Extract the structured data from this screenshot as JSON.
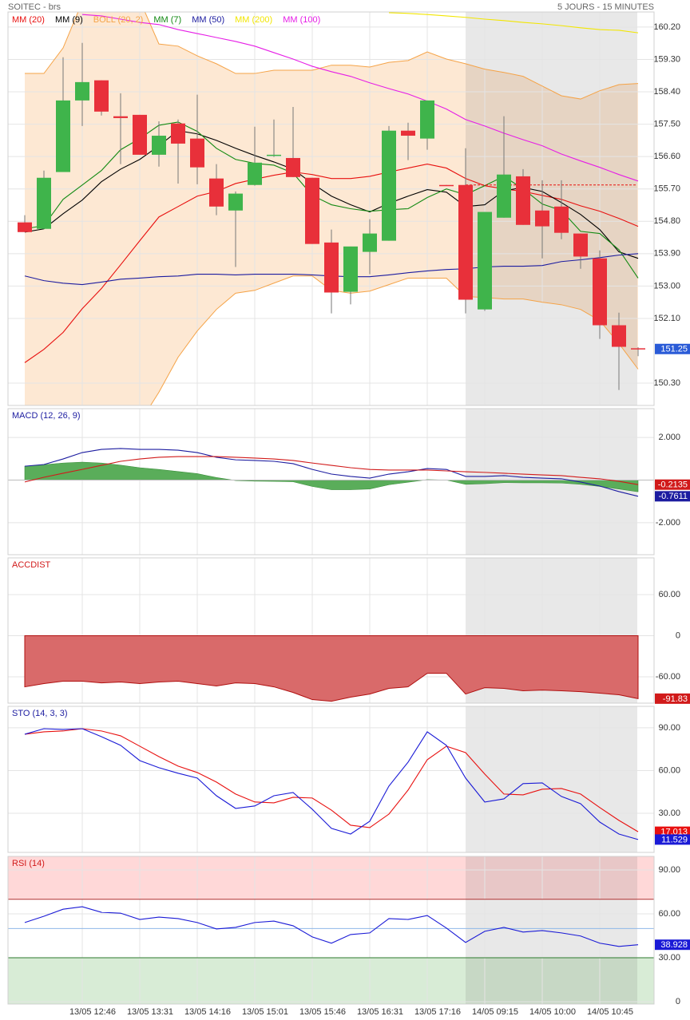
{
  "header": {
    "symbol": "SOITEC - brs",
    "period": "5 JOURS - 15 MINUTES"
  },
  "chart_data": [
    {
      "type": "candlestick",
      "categories": [
        null,
        null,
        null,
        "13/05 12:46",
        null,
        null,
        "13/05 13:31",
        null,
        null,
        "13/05 14:16",
        null,
        null,
        "13/05 15:01",
        null,
        null,
        "13/05 15:46",
        null,
        null,
        "13/05 16:31",
        null,
        null,
        "13/05 17:16",
        null,
        null,
        "14/05 09:15",
        null,
        null,
        "14/05 10:00",
        null,
        null,
        "14/05 10:45",
        null,
        null
      ],
      "open": [
        154.77,
        154.59,
        156.17,
        158.16,
        158.72,
        157.72,
        157.76,
        156.65,
        157.52,
        157.1,
        155.99,
        155.1,
        155.81,
        156.63,
        156.56,
        156.01,
        154.21,
        152.84,
        153.95,
        154.26,
        157.32,
        157.1,
        155.81,
        155.81,
        152.35,
        154.9,
        156.05,
        155.1,
        155.21,
        154.46,
        153.77,
        151.91,
        151.27
      ],
      "high": [
        154.97,
        156.21,
        159.36,
        159.76,
        158.72,
        158.36,
        157.76,
        157.58,
        157.63,
        158.32,
        156.39,
        155.63,
        157.43,
        157.63,
        157.98,
        156.01,
        154.57,
        154.1,
        154.86,
        157.45,
        157.54,
        158.16,
        155.81,
        156.83,
        155.06,
        157.72,
        156.25,
        155.94,
        155.94,
        154.46,
        153.99,
        152.26,
        151.3
      ],
      "low": [
        154.5,
        154.59,
        156.17,
        157.45,
        157.74,
        156.39,
        156.65,
        156.32,
        155.85,
        155.83,
        154.97,
        153.53,
        155.79,
        156.59,
        156.03,
        154.17,
        152.24,
        152.49,
        153.33,
        154.26,
        156.5,
        156.79,
        155.79,
        152.24,
        152.31,
        154.9,
        154.7,
        153.77,
        154.3,
        153.48,
        151.53,
        150.11,
        151.05
      ],
      "close": [
        154.5,
        156.01,
        158.16,
        158.67,
        157.85,
        157.67,
        156.65,
        157.18,
        156.96,
        156.3,
        155.21,
        155.57,
        156.43,
        156.65,
        156.03,
        154.17,
        152.82,
        154.1,
        154.46,
        157.32,
        157.18,
        158.16,
        155.79,
        152.62,
        155.06,
        156.1,
        154.7,
        154.66,
        154.48,
        153.82,
        151.91,
        151.31,
        151.25
      ],
      "up_color": "#3fb44b",
      "down_color": "#e8303a",
      "last_price_color": "#2a5bd7",
      "ref_line": 155.81,
      "ref_line_color": "#e8100f",
      "series": [
        {
          "name": "MM (20)",
          "color": "#e8100f",
          "values": [
            150.87,
            151.24,
            151.71,
            152.37,
            152.93,
            153.59,
            154.26,
            154.92,
            155.21,
            155.5,
            155.63,
            155.85,
            155.97,
            156.08,
            156.17,
            156.1,
            155.99,
            155.99,
            156.05,
            156.17,
            156.28,
            156.39,
            156.28,
            155.99,
            155.79,
            155.7,
            155.63,
            155.52,
            155.41,
            155.23,
            155.08,
            154.88,
            154.66
          ]
        },
        {
          "name": "MM (9)",
          "color": "#000000",
          "values": [
            154.5,
            154.59,
            155.01,
            155.39,
            155.9,
            156.25,
            156.52,
            156.9,
            157.32,
            157.23,
            157.05,
            156.83,
            156.63,
            156.45,
            156.25,
            155.85,
            155.5,
            155.26,
            155.06,
            155.3,
            155.5,
            155.68,
            155.61,
            155.21,
            155.26,
            155.65,
            155.74,
            155.63,
            155.32,
            154.99,
            154.57,
            153.95,
            153.77
          ]
        },
        {
          "name": "BOLL (20, 2)",
          "color": "#f5a347",
          "fill": "#fde8d3",
          "upper": [
            158.91,
            158.91,
            159.62,
            160.9,
            161.05,
            161.1,
            160.95,
            159.73,
            159.67,
            159.4,
            159.18,
            158.91,
            158.91,
            159.0,
            159.0,
            159.0,
            159.14,
            159.14,
            159.09,
            159.22,
            159.27,
            159.51,
            159.31,
            159.18,
            159.03,
            158.94,
            158.83,
            158.56,
            158.29,
            158.2,
            158.43,
            158.6,
            158.63
          ],
          "lower": [
            149.3,
            149.2,
            148.9,
            148.6,
            148.5,
            148.6,
            149.2,
            150.05,
            151.02,
            151.75,
            152.35,
            152.8,
            152.88,
            153.08,
            153.28,
            153.28,
            152.88,
            152.8,
            152.86,
            153.04,
            153.22,
            153.22,
            153.22,
            152.71,
            152.68,
            152.64,
            152.64,
            152.55,
            152.48,
            152.35,
            152.04,
            151.4,
            150.69
          ]
        },
        {
          "name": "MM (7)",
          "color": "#138a13",
          "values": [
            154.59,
            154.68,
            155.41,
            155.81,
            156.21,
            156.79,
            157.1,
            157.47,
            157.56,
            157.3,
            156.83,
            156.52,
            156.41,
            156.36,
            156.14,
            155.52,
            155.26,
            155.15,
            155.08,
            155.12,
            155.15,
            155.46,
            155.7,
            155.54,
            155.79,
            156.05,
            155.7,
            155.28,
            155.1,
            154.52,
            154.46,
            154.01,
            153.22
          ]
        },
        {
          "name": "MM (50)",
          "color": "#1c1ca0",
          "values": [
            153.28,
            153.15,
            153.08,
            153.04,
            153.11,
            153.19,
            153.22,
            153.26,
            153.28,
            153.33,
            153.33,
            153.31,
            153.33,
            153.33,
            153.33,
            153.31,
            153.28,
            153.26,
            153.26,
            153.31,
            153.37,
            153.42,
            153.46,
            153.48,
            153.53,
            153.55,
            153.55,
            153.57,
            153.68,
            153.73,
            153.79,
            153.86,
            153.9
          ]
        },
        {
          "name": "MM (200)",
          "color": "#f2e600",
          "values": [
            null,
            null,
            null,
            null,
            null,
            null,
            null,
            null,
            null,
            null,
            null,
            null,
            null,
            null,
            null,
            null,
            null,
            null,
            null,
            160.6,
            160.58,
            160.55,
            160.51,
            160.47,
            160.42,
            160.38,
            160.33,
            160.29,
            160.24,
            160.18,
            160.13,
            160.11,
            160.04
          ]
        },
        {
          "name": "MM (100)",
          "color": "#e61ee6",
          "values": [
            null,
            null,
            null,
            160.55,
            160.51,
            160.42,
            160.33,
            160.27,
            160.13,
            160.02,
            159.91,
            159.8,
            159.67,
            159.49,
            159.31,
            159.11,
            158.96,
            158.83,
            158.65,
            158.49,
            158.34,
            158.14,
            157.92,
            157.63,
            157.45,
            157.25,
            157.07,
            156.9,
            156.67,
            156.48,
            156.3,
            156.1,
            155.92
          ]
        }
      ],
      "ylim": [
        149.68,
        160.62
      ],
      "yticks": [
        {
          "value": 160.2,
          "label": "160.20"
        },
        {
          "value": 159.3,
          "label": "159.30"
        },
        {
          "value": 158.4,
          "label": "158.40"
        },
        {
          "value": 157.5,
          "label": "157.50"
        },
        {
          "value": 156.6,
          "label": "156.60"
        },
        {
          "value": 155.7,
          "label": "155.70"
        },
        {
          "value": 154.8,
          "label": "154.80"
        },
        {
          "value": 153.9,
          "label": "153.90"
        },
        {
          "value": 153,
          "label": "153.00"
        },
        {
          "value": 152.1,
          "label": "152.10"
        },
        {
          "value": 150.3,
          "label": "150.30"
        }
      ],
      "grid": true
    },
    {
      "type": "macd",
      "title": "MACD (12, 26, 9)",
      "title_color": "#1c1ca0",
      "series": [
        {
          "color": "#1c1ca0",
          "values": [
            0.65,
            0.73,
            0.99,
            1.29,
            1.44,
            1.48,
            1.44,
            1.44,
            1.4,
            1.29,
            1.07,
            0.95,
            0.92,
            0.88,
            0.77,
            0.5,
            0.28,
            0.17,
            0.09,
            0.28,
            0.39,
            0.54,
            0.5,
            0.17,
            0.17,
            0.21,
            0.13,
            0.09,
            0.06,
            -0.09,
            -0.28,
            -0.54,
            -0.7611
          ]
        },
        {
          "color": "#d11a1a",
          "values": [
            -0.09,
            0.13,
            0.32,
            0.5,
            0.69,
            0.88,
            0.99,
            1.07,
            1.1,
            1.1,
            1.1,
            1.07,
            1.03,
            0.99,
            0.92,
            0.8,
            0.69,
            0.58,
            0.5,
            0.47,
            0.47,
            0.47,
            0.43,
            0.39,
            0.36,
            0.32,
            0.28,
            0.24,
            0.21,
            0.13,
            0.06,
            -0.06,
            -0.2135
          ]
        }
      ],
      "histogram": [
        0.65,
        0.72,
        0.8,
        0.84,
        0.8,
        0.7,
        0.58,
        0.5,
        0.4,
        0.3,
        0.12,
        -0.02,
        -0.05,
        -0.06,
        -0.08,
        -0.3,
        -0.45,
        -0.45,
        -0.42,
        -0.22,
        -0.1,
        0.02,
        0.0,
        -0.2,
        -0.17,
        -0.12,
        -0.13,
        -0.13,
        -0.14,
        -0.2,
        -0.3,
        -0.42,
        -0.55
      ],
      "histogram_color": "#5aad5a",
      "ylim": [
        -3.5,
        3.35
      ],
      "yticks": [
        {
          "value": 2,
          "label": "2.000"
        },
        {
          "value": -2,
          "label": "-2.000"
        }
      ],
      "grid": true
    },
    {
      "type": "area",
      "title": "ACCDIST",
      "title_color": "#d11a1a",
      "color": "#d96a6a",
      "line_color": "#b01010",
      "values": [
        -74.6,
        -69.9,
        -66.4,
        -66.4,
        -68.8,
        -67.6,
        -69.9,
        -67.6,
        -66.4,
        -69.9,
        -73.4,
        -68.8,
        -69.9,
        -74.6,
        -82.8,
        -93.2,
        -95.6,
        -89.7,
        -85.1,
        -76.9,
        -74.6,
        -54.8,
        -54.8,
        -85.1,
        -75.8,
        -76.9,
        -80.4,
        -79.3,
        -80.4,
        -81.6,
        -83.9,
        -86.2,
        -91.83
      ],
      "label_color": "#d11a1a",
      "ylim": [
        -98.4,
        113.6
      ],
      "yticks": [
        {
          "value": 60,
          "label": "60.00"
        },
        0,
        {
          "value": -60,
          "label": "-60.00"
        }
      ],
      "grid": true
    },
    {
      "type": "line",
      "title": "STO (14, 3, 3)",
      "title_color": "#1c1ca0",
      "series": [
        {
          "color": "#e8100f",
          "values": [
            85.5,
            87.2,
            87.8,
            89.4,
            87.8,
            84.4,
            77.1,
            69.8,
            63.1,
            58.6,
            51.9,
            43.5,
            37.9,
            37.3,
            41.2,
            40.7,
            32.2,
            21.6,
            19.9,
            29.4,
            46.3,
            67.6,
            77.1,
            72.6,
            57.5,
            43.5,
            42.9,
            46.9,
            47.4,
            43.5,
            34.0,
            25.0,
            17.013
          ]
        },
        {
          "color": "#1a1ad6",
          "values": [
            85.5,
            89.4,
            88.9,
            89.4,
            83.8,
            77.7,
            67.0,
            62.0,
            58.1,
            54.7,
            42.3,
            33.4,
            35.1,
            42.3,
            44.6,
            32.8,
            19.4,
            15.4,
            24.4,
            49.1,
            65.9,
            87.2,
            77.7,
            54.7,
            37.9,
            40.1,
            50.8,
            51.3,
            41.8,
            36.7,
            23.8,
            15.4,
            11.529
          ]
        }
      ],
      "ylim": [
        2.5,
        105.1
      ],
      "yticks": [
        {
          "value": 90,
          "label": "90.00"
        },
        {
          "value": 60,
          "label": "60.00"
        },
        {
          "value": 30,
          "label": "30.00"
        }
      ],
      "grid": true
    },
    {
      "type": "line",
      "title": "RSI (14)",
      "title_color": "#d11a1a",
      "series": [
        {
          "color": "#1a1ad6",
          "values": [
            54.1,
            58.4,
            63.2,
            64.9,
            61.1,
            60.5,
            56.2,
            57.8,
            56.8,
            54.1,
            49.7,
            50.8,
            54.1,
            55.1,
            51.9,
            44.3,
            40.0,
            45.9,
            47.0,
            56.8,
            56.2,
            58.9,
            50.3,
            40.5,
            48.1,
            50.8,
            47.6,
            48.6,
            47.0,
            44.9,
            40.0,
            37.8,
            38.928
          ]
        }
      ],
      "overbought": 70,
      "oversold": 30,
      "midline": 50,
      "ylim": [
        -1.6,
        99.3
      ],
      "yticks": [
        {
          "value": 90,
          "label": "90.00"
        },
        {
          "value": 60,
          "label": "60.00"
        },
        {
          "value": 30,
          "label": "30.00"
        },
        0
      ],
      "grid": true
    }
  ]
}
